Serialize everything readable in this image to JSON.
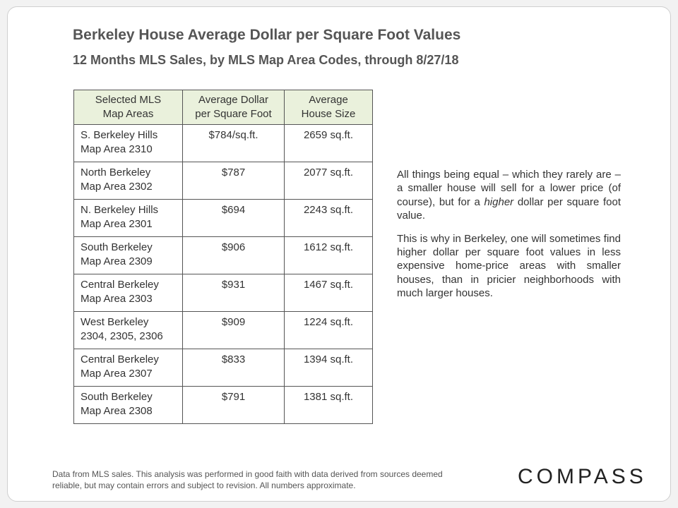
{
  "title": "Berkeley House Average Dollar per Square Foot Values",
  "subtitle": "12 Months MLS Sales, by MLS Map Area Codes, through 8/27/18",
  "table": {
    "headers": [
      [
        "Selected MLS",
        "Map Areas"
      ],
      [
        "Average Dollar",
        "per Square Foot"
      ],
      [
        "Average",
        "House Size"
      ]
    ],
    "rows": [
      {
        "area_line1": "S. Berkeley Hills",
        "area_line2": "Map Area 2310",
        "dollar_per_sqft": "$784/sq.ft.",
        "house_size": "2659 sq.ft."
      },
      {
        "area_line1": "North Berkeley",
        "area_line2": "Map Area 2302",
        "dollar_per_sqft": "$787",
        "house_size": "2077 sq.ft."
      },
      {
        "area_line1": "N. Berkeley Hills",
        "area_line2": "Map Area 2301",
        "dollar_per_sqft": "$694",
        "house_size": "2243 sq.ft."
      },
      {
        "area_line1": "South Berkeley",
        "area_line2": "Map Area 2309",
        "dollar_per_sqft": "$906",
        "house_size": "1612 sq.ft."
      },
      {
        "area_line1": "Central Berkeley",
        "area_line2": "Map Area 2303",
        "dollar_per_sqft": "$931",
        "house_size": "1467 sq.ft."
      },
      {
        "area_line1": "West Berkeley",
        "area_line2": "2304, 2305, 2306",
        "dollar_per_sqft": "$909",
        "house_size": "1224 sq.ft."
      },
      {
        "area_line1": "Central Berkeley",
        "area_line2": "Map Area 2307",
        "dollar_per_sqft": "$833",
        "house_size": "1394 sq.ft."
      },
      {
        "area_line1": "South Berkeley",
        "area_line2": "Map Area 2308",
        "dollar_per_sqft": "$791",
        "house_size": "1381 sq.ft."
      }
    ]
  },
  "note": {
    "p1_before": "All things being equal – which they rarely are – a smaller house will sell for a lower price (of course), but for a ",
    "p1_emphasis": "higher",
    "p1_after": " dollar per square foot value.",
    "p2": "This is why in Berkeley, one will sometimes find higher dollar per square foot values in less expensive home-price areas with smaller houses, than in pricier neighborhoods with much larger houses."
  },
  "footer": "Data from MLS sales. This analysis was performed in good faith with data derived from sources deemed reliable, but may contain errors and subject to revision. All numbers approximate.",
  "logo": "COMPASS"
}
